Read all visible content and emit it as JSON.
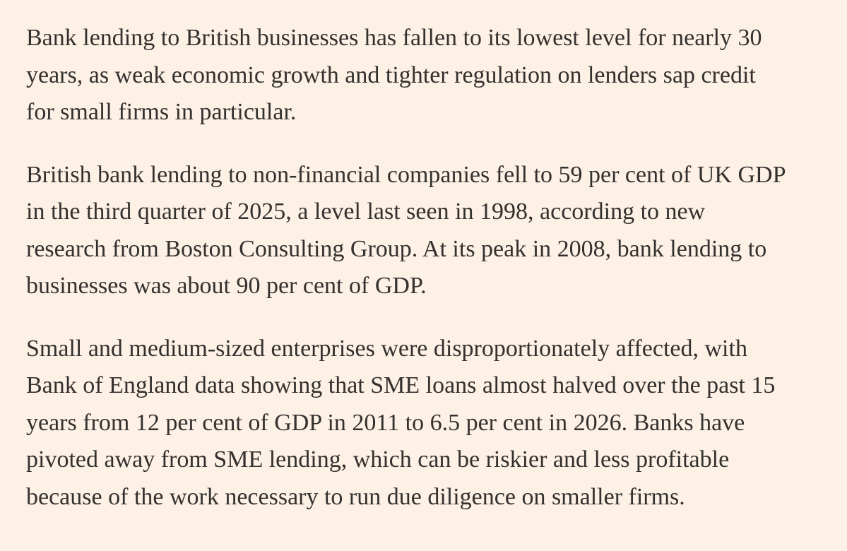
{
  "article": {
    "paragraphs": [
      {
        "lines": [
          "Bank lending to British businesses has fallen to its lowest level for nearly 30",
          "years, as weak economic growth and tighter regulation on lenders sap credit",
          "for small firms in particular."
        ]
      },
      {
        "lines": [
          "British bank lending to non-financial companies fell to 59 per cent of UK GDP",
          "in the third quarter of 2025, a level last seen in 1998, according to new",
          "research from Boston Consulting Group. At its peak in 2008, bank lending to",
          "businesses was about 90 per cent of GDP."
        ]
      },
      {
        "lines": [
          "Small and medium-sized enterprises were disproportionately affected, with",
          "Bank of England data showing that SME loans almost halved over the past 15",
          "years from 12 per cent of GDP in 2011 to 6.5 per cent in 2026. Banks have",
          "pivoted away from SME lending, which can be riskier and less profitable",
          "because of the work necessary to run due diligence on smaller firms."
        ]
      }
    ]
  }
}
